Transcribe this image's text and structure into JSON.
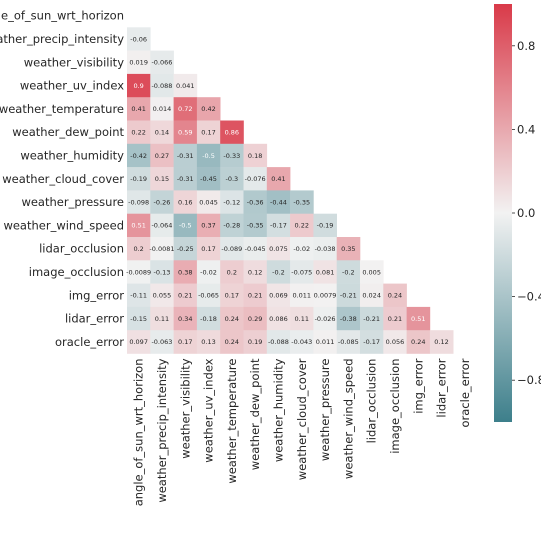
{
  "chart_data": {
    "type": "heatmap",
    "title": "",
    "xlabel": "",
    "ylabel": "",
    "variables": [
      "angle_of_sun_wrt_horizon",
      "weather_precip_intensity",
      "weather_visibility",
      "weather_uv_index",
      "weather_temperature",
      "weather_dew_point",
      "weather_humidity",
      "weather_cloud_cover",
      "weather_pressure",
      "weather_wind_speed",
      "lidar_occlusion",
      "image_occlusion",
      "img_error",
      "lidar_error",
      "oracle_error"
    ],
    "mask": "upper-triangle-and-diagonal",
    "values": [
      [],
      [
        -0.06
      ],
      [
        0.019,
        -0.066
      ],
      [
        0.9,
        -0.088,
        0.041
      ],
      [
        0.41,
        0.014,
        0.72,
        0.42
      ],
      [
        0.22,
        0.14,
        0.59,
        0.17,
        0.86
      ],
      [
        -0.42,
        0.27,
        -0.31,
        -0.5,
        -0.33,
        0.18
      ],
      [
        -0.19,
        0.15,
        -0.31,
        -0.45,
        -0.3,
        -0.076,
        0.41
      ],
      [
        -0.098,
        -0.26,
        0.16,
        0.045,
        -0.12,
        -0.36,
        -0.44,
        -0.35
      ],
      [
        0.51,
        -0.064,
        -0.5,
        0.37,
        -0.28,
        -0.35,
        -0.17,
        0.22,
        -0.19
      ],
      [
        0.2,
        -0.0081,
        -0.25,
        0.17,
        -0.089,
        -0.045,
        0.075,
        -0.02,
        -0.038,
        0.35
      ],
      [
        -0.0089,
        -0.13,
        0.38,
        -0.02,
        0.2,
        0.12,
        -0.2,
        -0.075,
        0.081,
        -0.2,
        0.005
      ],
      [
        -0.11,
        0.055,
        0.21,
        -0.065,
        0.17,
        0.21,
        0.069,
        0.011,
        0.0079,
        -0.21,
        0.024,
        0.24
      ],
      [
        -0.15,
        0.11,
        0.34,
        -0.18,
        0.24,
        0.29,
        0.086,
        0.11,
        -0.026,
        -0.38,
        -0.21,
        0.21,
        0.51
      ],
      [
        0.097,
        -0.063,
        0.17,
        0.13,
        0.24,
        0.19,
        -0.088,
        -0.043,
        0.011,
        -0.085,
        -0.17,
        0.056,
        0.24,
        0.12
      ]
    ],
    "labels": [
      [],
      [
        "-0.06"
      ],
      [
        "0.019",
        "-0.066"
      ],
      [
        "0.9",
        "-0.088",
        "0.041"
      ],
      [
        "0.41",
        "0.014",
        "0.72",
        "0.42"
      ],
      [
        "0.22",
        "0.14",
        "0.59",
        "0.17",
        "0.86"
      ],
      [
        "-0.42",
        "0.27",
        "-0.31",
        "-0.5",
        "-0.33",
        "0.18"
      ],
      [
        "-0.19",
        "0.15",
        "-0.31",
        "-0.45",
        "-0.3",
        "-0.076",
        "0.41"
      ],
      [
        "-0.098",
        "-0.26",
        "0.16",
        "0.045",
        "-0.12",
        "-0.36",
        "-0.44",
        "-0.35"
      ],
      [
        "0.51",
        "-0.064",
        "-0.5",
        "0.37",
        "-0.28",
        "-0.35",
        "-0.17",
        "0.22",
        "-0.19"
      ],
      [
        "0.2",
        "-0.0081",
        "-0.25",
        "0.17",
        "-0.089",
        "-0.045",
        "0.075",
        "-0.02",
        "-0.038",
        "0.35"
      ],
      [
        "-0.0089",
        "-0.13",
        "0.38",
        "-0.02",
        "0.2",
        "0.12",
        "-0.2",
        "-0.075",
        "0.081",
        "-0.2",
        "0.005"
      ],
      [
        "-0.11",
        "0.055",
        "0.21",
        "-0.065",
        "0.17",
        "0.21",
        "0.069",
        "0.011",
        "0.0079",
        "-0.21",
        "0.024",
        "0.24"
      ],
      [
        "-0.15",
        "0.11",
        "0.34",
        "-0.18",
        "0.24",
        "0.29",
        "0.086",
        "0.11",
        "-0.026",
        "-0.38",
        "-0.21",
        "0.21",
        "0.51"
      ],
      [
        "0.097",
        "-0.063",
        "0.17",
        "0.13",
        "0.24",
        "0.19",
        "-0.088",
        "-0.043",
        "0.011",
        "-0.085",
        "-0.17",
        "0.056",
        "0.24",
        "0.12"
      ]
    ],
    "colorbar": {
      "range": [
        -1.0,
        1.0
      ],
      "ticks": [
        0.8,
        0.4,
        0.0,
        -0.4,
        -0.8
      ],
      "tick_labels": [
        "0.8",
        "0.4",
        "0.0",
        "−0.4",
        "−0.8"
      ],
      "cmap": "diverging teal-to-red",
      "colors": {
        "negative_end": "#3D7F8B",
        "center": "#F2F2F2",
        "positive_end": "#D93A49"
      }
    },
    "grid": false,
    "legend": "colorbar-right"
  }
}
